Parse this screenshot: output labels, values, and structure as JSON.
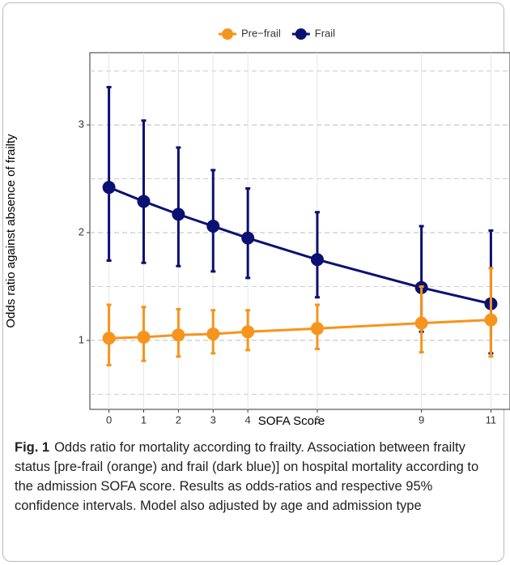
{
  "chart_data": {
    "type": "errorbar-line",
    "x_label": "SOFA Score",
    "y_label": "Odds ratio against absence of frailty",
    "x": [
      0,
      1,
      2,
      3,
      4,
      6,
      9,
      11
    ],
    "series": [
      {
        "name": "Pre−frail",
        "color": "#f7941d",
        "values": [
          1.02,
          1.03,
          1.05,
          1.06,
          1.08,
          1.11,
          1.16,
          1.19
        ],
        "low": [
          0.77,
          0.81,
          0.85,
          0.88,
          0.91,
          0.92,
          0.89,
          0.85
        ],
        "high": [
          1.33,
          1.31,
          1.29,
          1.28,
          1.28,
          1.33,
          1.5,
          1.67
        ]
      },
      {
        "name": "Frail",
        "color": "#0a1172",
        "values": [
          2.42,
          2.29,
          2.17,
          2.06,
          1.95,
          1.75,
          1.49,
          1.34
        ],
        "low": [
          1.74,
          1.72,
          1.69,
          1.64,
          1.58,
          1.4,
          1.08,
          0.88
        ],
        "high": [
          3.35,
          3.04,
          2.79,
          2.58,
          2.41,
          2.19,
          2.06,
          2.02
        ]
      }
    ],
    "xlim": [
      -0.55,
      11.55
    ],
    "xticks": [
      0,
      1,
      2,
      3,
      4,
      6,
      9,
      11
    ],
    "ylim": [
      0.36,
      3.67
    ],
    "yticks": [
      1,
      2,
      3
    ],
    "yminor": [
      0.5,
      1.5,
      2.5,
      3.5
    ],
    "grid": true,
    "legend": "top"
  },
  "caption": {
    "label": "Fig. 1",
    "text": "Odds ratio for mortality according to frailty. Association between frailty status [pre-frail (orange) and frail (dark blue)] on hospital mortality according to the admission SOFA score. Results as odds-ratios and respective 95% confidence intervals. Model also adjusted by age and admission type"
  }
}
